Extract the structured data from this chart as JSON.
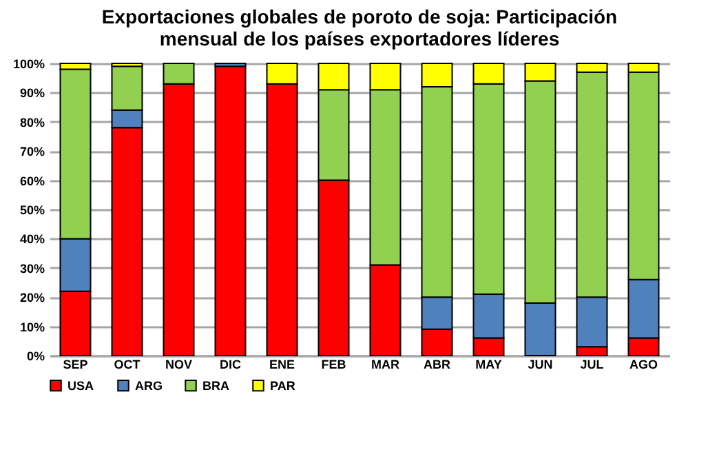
{
  "chart_data": {
    "type": "bar",
    "title": "Exportaciones globales de poroto de soja: Participación mensual de los países exportadores líderes",
    "stacked": true,
    "categories": [
      "SEP",
      "OCT",
      "NOV",
      "DIC",
      "ENE",
      "FEB",
      "MAR",
      "ABR",
      "MAY",
      "JUN",
      "JUL",
      "AGO"
    ],
    "series": [
      {
        "name": "USA",
        "color": "#ff0000",
        "values": [
          22,
          78,
          93,
          99,
          93,
          60,
          31,
          9,
          6,
          0,
          3,
          6
        ]
      },
      {
        "name": "ARG",
        "color": "#4f81bd",
        "values": [
          18,
          6,
          0,
          1,
          0,
          0,
          0,
          11,
          15,
          18,
          17,
          20
        ]
      },
      {
        "name": "BRA",
        "color": "#92d050",
        "values": [
          58,
          15,
          7,
          0,
          0,
          31,
          60,
          72,
          72,
          76,
          77,
          71
        ]
      },
      {
        "name": "PAR",
        "color": "#ffff00",
        "values": [
          2,
          1,
          0,
          0,
          7,
          9,
          9,
          8,
          7,
          6,
          3,
          3
        ]
      }
    ],
    "ylim": [
      0,
      100
    ],
    "yticks": [
      {
        "value": 0,
        "label": "0%"
      },
      {
        "value": 10,
        "label": "10%"
      },
      {
        "value": 20,
        "label": "20%"
      },
      {
        "value": 30,
        "label": "30%"
      },
      {
        "value": 40,
        "label": "40%"
      },
      {
        "value": 50,
        "label": "50%"
      },
      {
        "value": 60,
        "label": "60%"
      },
      {
        "value": 70,
        "label": "70%"
      },
      {
        "value": 80,
        "label": "80%"
      },
      {
        "value": 90,
        "label": "90%"
      },
      {
        "value": 100,
        "label": "100%"
      }
    ],
    "grid": true,
    "legend": "bottom"
  }
}
